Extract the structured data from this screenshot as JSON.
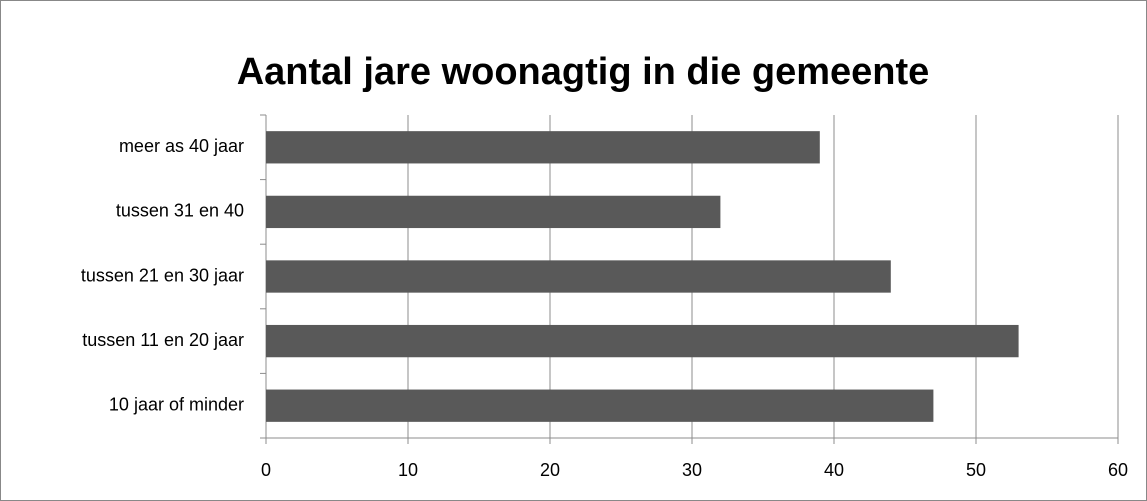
{
  "chart_data": {
    "type": "bar",
    "orientation": "horizontal",
    "title": "Aantal jare woonagtig in die gemeente",
    "categories": [
      "meer as 40 jaar",
      "tussen 31 en 40",
      "tussen 21 en 30 jaar",
      "tussen 11 en 20 jaar",
      "10 jaar of minder"
    ],
    "values": [
      39,
      32,
      44,
      53,
      47
    ],
    "color": "#595959",
    "xlim": [
      0,
      60
    ],
    "xticks": [
      0,
      10,
      20,
      30,
      40,
      50,
      60
    ],
    "grid": true
  }
}
